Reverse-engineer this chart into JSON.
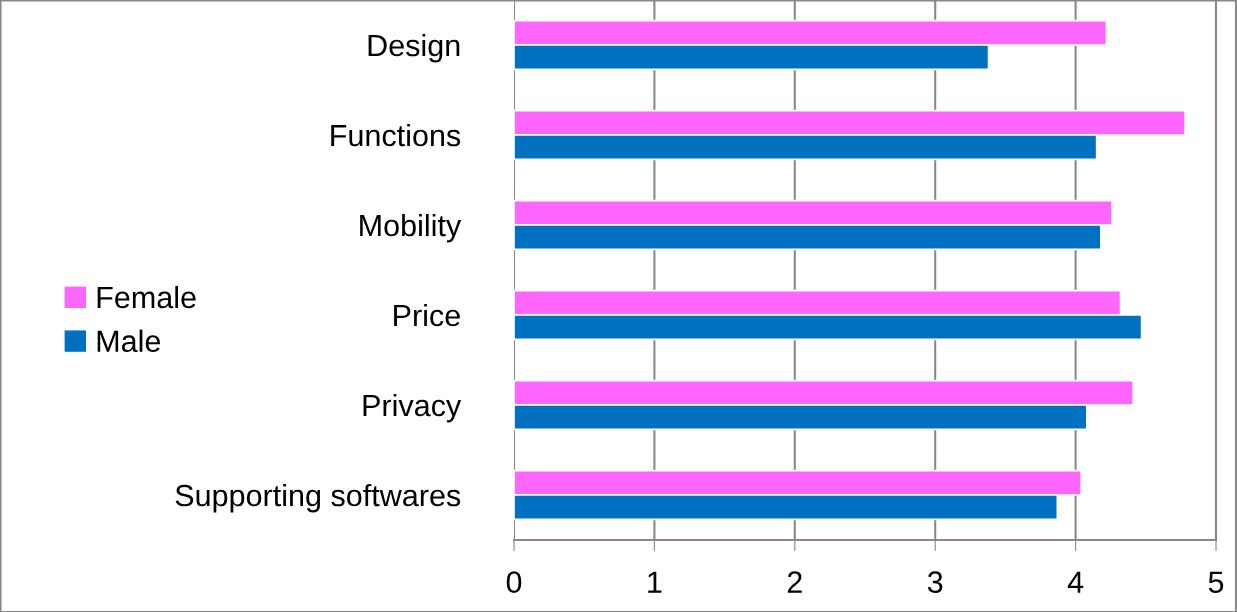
{
  "chart_data": {
    "type": "bar",
    "orientation": "horizontal",
    "categories": [
      "Design",
      "Functions",
      "Mobility",
      "Price",
      "Privacy",
      "Supporting softwares"
    ],
    "series": [
      {
        "name": "Female",
        "color": "#ff66ff",
        "values": [
          4.22,
          4.78,
          4.26,
          4.32,
          4.41,
          4.04
        ]
      },
      {
        "name": "Male",
        "color": "#0070c0",
        "values": [
          3.38,
          4.15,
          4.18,
          4.47,
          4.08,
          3.87
        ]
      }
    ],
    "xlim": [
      0,
      5
    ],
    "xticks": [
      0,
      1,
      2,
      3,
      4,
      5
    ],
    "grid": "x",
    "legend": "left"
  }
}
